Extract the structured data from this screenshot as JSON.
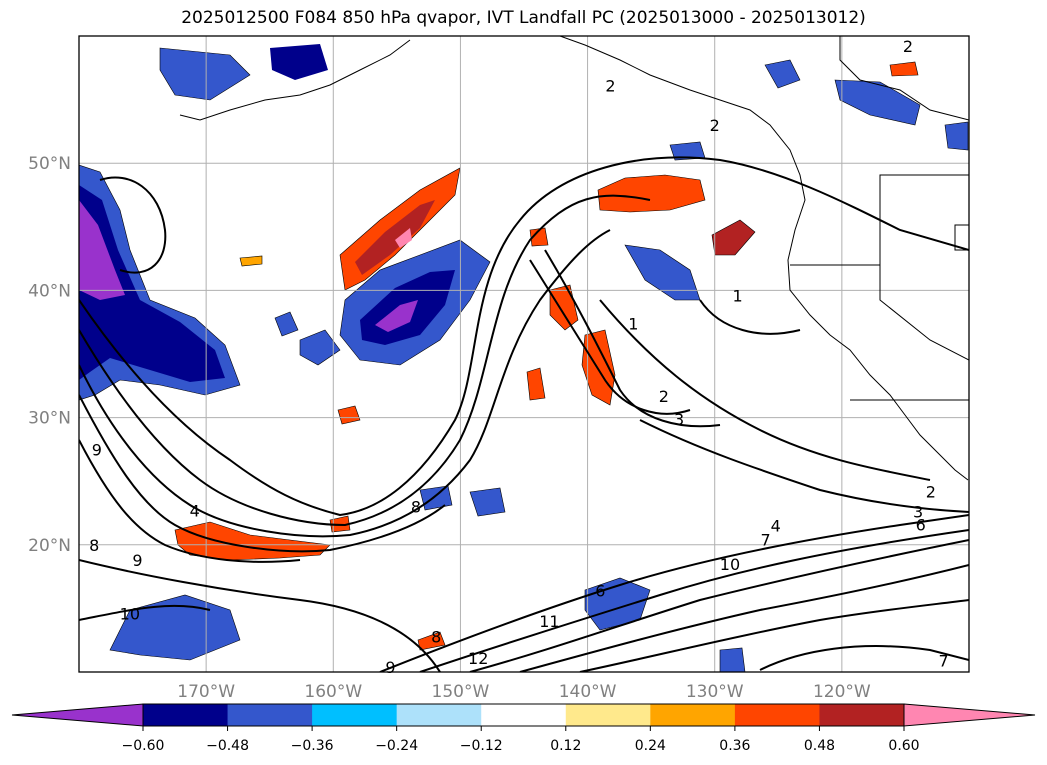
{
  "chart_data": {
    "type": "heatmap",
    "title": "2025012500 F084 850 hPa qvapor, IVT Landfall PC (2025013000 - 2025013012)",
    "map": {
      "lon_range": [
        -180,
        -110
      ],
      "lat_range": [
        10,
        60
      ],
      "lat_ticks": [
        "20°N",
        "30°N",
        "40°N",
        "50°N"
      ],
      "lat_tick_values": [
        20,
        30,
        40,
        50
      ],
      "lon_ticks": [
        "170°W",
        "160°W",
        "150°W",
        "140°W",
        "130°W",
        "120°W"
      ],
      "lon_tick_values": [
        -170,
        -160,
        -150,
        -140,
        -130,
        -120
      ],
      "grid": true
    },
    "colorbar": {
      "orientation": "horizontal",
      "extend": "both",
      "tick_labels": [
        "−0.60",
        "−0.48",
        "−0.36",
        "−0.24",
        "−0.12",
        "0.12",
        "0.24",
        "0.36",
        "0.48",
        "0.60"
      ],
      "tick_values": [
        -0.6,
        -0.48,
        -0.36,
        -0.24,
        -0.12,
        0.12,
        0.24,
        0.36,
        0.48,
        0.6
      ],
      "colors": [
        "#9932cc",
        "#00008b",
        "#3457cc",
        "#00bfff",
        "#ade1fa",
        "#ffffff",
        "#ffe98c",
        "#ffa500",
        "#ff4500",
        "#b22222",
        "#ff86b1"
      ]
    },
    "contour_labels": [
      {
        "text": "2",
        "lon": -138.2,
        "lat": 56.1
      },
      {
        "text": "2",
        "lon": -130.0,
        "lat": 53.0
      },
      {
        "text": "2",
        "lon": -114.8,
        "lat": 59.2
      },
      {
        "text": "1",
        "lon": -128.2,
        "lat": 39.6
      },
      {
        "text": "1",
        "lon": -136.4,
        "lat": 37.4
      },
      {
        "text": "2",
        "lon": -134.0,
        "lat": 31.7
      },
      {
        "text": "3",
        "lon": -132.8,
        "lat": 29.9
      },
      {
        "text": "9",
        "lon": -178.6,
        "lat": 27.5
      },
      {
        "text": "4",
        "lon": -170.9,
        "lat": 22.7
      },
      {
        "text": "8",
        "lon": -178.8,
        "lat": 20.0
      },
      {
        "text": "9",
        "lon": -175.4,
        "lat": 18.8
      },
      {
        "text": "10",
        "lon": -176.0,
        "lat": 14.6
      },
      {
        "text": "6",
        "lon": -139.0,
        "lat": 16.4
      },
      {
        "text": "11",
        "lon": -143.0,
        "lat": 14.0
      },
      {
        "text": "12",
        "lon": -148.6,
        "lat": 11.1
      },
      {
        "text": "9",
        "lon": -155.5,
        "lat": 10.4
      },
      {
        "text": "10",
        "lon": -128.8,
        "lat": 18.5
      },
      {
        "text": "7",
        "lon": -126.0,
        "lat": 20.4
      },
      {
        "text": "4",
        "lon": -125.2,
        "lat": 21.5
      },
      {
        "text": "3",
        "lon": -114.0,
        "lat": 22.6
      },
      {
        "text": "6",
        "lon": -113.8,
        "lat": 21.6
      },
      {
        "text": "2",
        "lon": -113.0,
        "lat": 24.2
      },
      {
        "text": "7",
        "lon": -112.0,
        "lat": 10.9
      },
      {
        "text": "8",
        "lon": -153.5,
        "lat": 23.0
      },
      {
        "text": "8",
        "lon": -151.9,
        "lat": 12.8
      }
    ]
  }
}
